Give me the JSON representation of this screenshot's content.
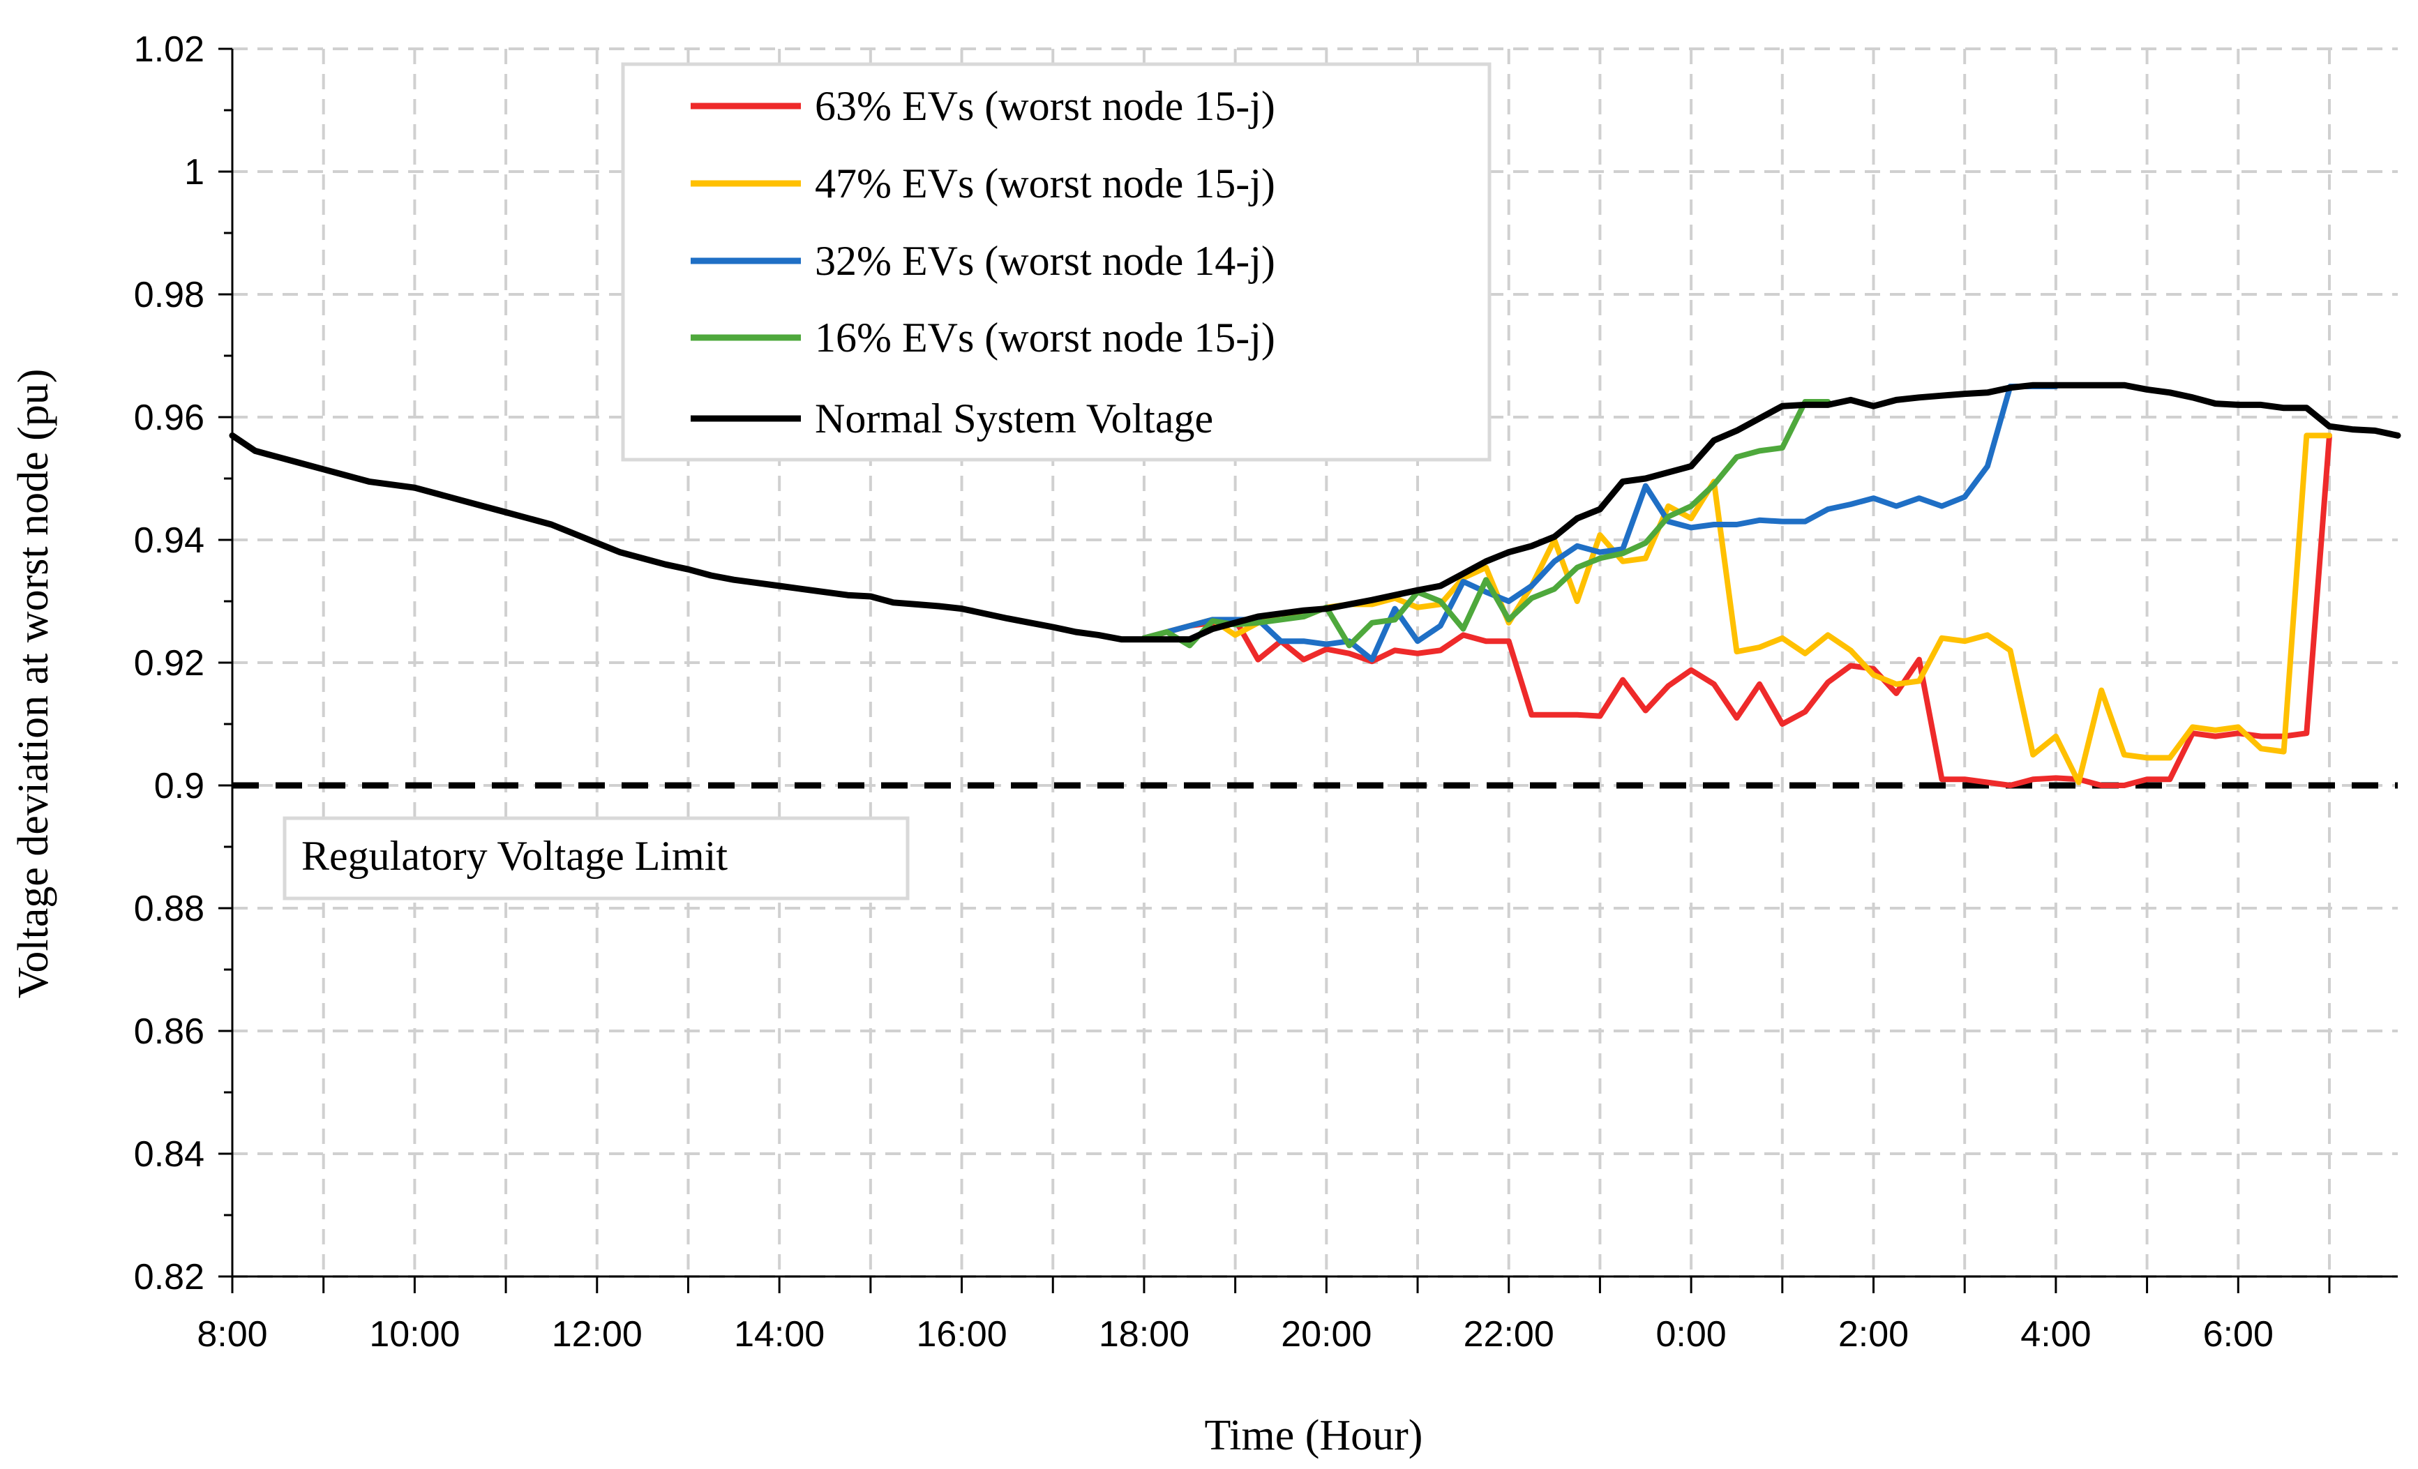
{
  "chart_data": {
    "type": "line",
    "title": "",
    "xlabel": "Time (Hour)",
    "ylabel": "Voltage deviation at worst node (pu)",
    "ylim": [
      0.82,
      1.02
    ],
    "y_ticks": [
      "1.02",
      "1",
      "0.98",
      "0.96",
      "0.94",
      "0.92",
      "0.9",
      "0.88",
      "0.86",
      "0.84",
      "0.82"
    ],
    "x_tick_labels": [
      "8:00",
      "10:00",
      "12:00",
      "14:00",
      "16:00",
      "18:00",
      "20:00",
      "22:00",
      "0:00",
      "2:00",
      "4:00",
      "6:00"
    ],
    "x_range_hours": [
      0,
      23.75
    ],
    "grid": true,
    "legend_position": "top-center",
    "reference_line": {
      "name": "Regulatory Voltage Limit",
      "value": 0.9,
      "style": "dashed",
      "color": "#000000"
    },
    "annotation": "Regulatory Voltage Limit",
    "series": [
      {
        "name": "63% EVs (worst node 15-j)",
        "color": "#ee2a2a",
        "x": [
          10,
          10.25,
          10.5,
          10.75,
          11,
          11.25,
          11.5,
          11.75,
          12,
          12.25,
          12.5,
          12.75,
          13,
          13.25,
          13.5,
          13.75,
          14,
          14.25,
          14.5,
          14.75,
          15,
          15.25,
          15.5,
          15.75,
          16,
          16.25,
          16.5,
          16.75,
          17,
          17.25,
          17.5,
          17.75,
          18,
          18.25,
          18.5,
          18.75,
          19,
          19.25,
          19.5,
          19.75,
          20,
          20.25,
          20.5,
          20.75,
          21,
          21.25,
          21.5,
          21.75,
          22,
          22.25,
          22.5,
          22.75,
          23
        ],
        "values": [
          0.9238,
          0.925,
          0.926,
          0.9265,
          0.927,
          0.9205,
          0.9235,
          0.9205,
          0.9222,
          0.9215,
          0.9202,
          0.922,
          0.9215,
          0.922,
          0.9245,
          0.9235,
          0.9235,
          0.9115,
          0.9115,
          0.9115,
          0.9113,
          0.9172,
          0.9122,
          0.9162,
          0.9188,
          0.9165,
          0.911,
          0.9165,
          0.91,
          0.912,
          0.9168,
          0.9195,
          0.919,
          0.915,
          0.9205,
          0.901,
          0.901,
          0.9005,
          0.9,
          0.901,
          0.9012,
          0.901,
          0.9,
          0.9,
          0.901,
          0.901,
          0.9085,
          0.908,
          0.9085,
          0.908,
          0.908,
          0.9085,
          0.957
        ]
      },
      {
        "name": "47% EVs (worst node 15-j)",
        "color": "#ffc000",
        "x": [
          10,
          10.25,
          10.5,
          10.75,
          11,
          11.25,
          11.5,
          11.75,
          12,
          12.25,
          12.5,
          12.75,
          13,
          13.25,
          13.5,
          13.75,
          14,
          14.25,
          14.5,
          14.75,
          15,
          15.25,
          15.5,
          15.75,
          16,
          16.25,
          16.5,
          16.75,
          17,
          17.25,
          17.5,
          17.75,
          18,
          18.25,
          18.5,
          18.75,
          19,
          19.25,
          19.5,
          19.75,
          20,
          20.25,
          20.5,
          20.75,
          21,
          21.25,
          21.5,
          21.75,
          22,
          22.25,
          22.5,
          22.75,
          23
        ],
        "values": [
          0.924,
          0.925,
          0.926,
          0.927,
          0.9245,
          0.9265,
          0.928,
          0.9275,
          0.929,
          0.9295,
          0.9295,
          0.9305,
          0.929,
          0.9295,
          0.9338,
          0.9355,
          0.9265,
          0.9325,
          0.94,
          0.93,
          0.9408,
          0.9365,
          0.937,
          0.9455,
          0.9435,
          0.9495,
          0.9218,
          0.9225,
          0.924,
          0.9215,
          0.9245,
          0.922,
          0.918,
          0.9165,
          0.917,
          0.924,
          0.9235,
          0.9245,
          0.922,
          0.905,
          0.908,
          0.9005,
          0.9155,
          0.905,
          0.9045,
          0.9045,
          0.9095,
          0.909,
          0.9095,
          0.906,
          0.9055,
          0.957,
          0.957
        ]
      },
      {
        "name": "32% EVs (worst node 14-j)",
        "color": "#1f6fc5",
        "x": [
          10,
          10.25,
          10.5,
          10.75,
          11,
          11.25,
          11.5,
          11.75,
          12,
          12.25,
          12.5,
          12.75,
          13,
          13.25,
          13.5,
          13.75,
          14,
          14.25,
          14.5,
          14.75,
          15,
          15.25,
          15.5,
          15.75,
          16,
          16.25,
          16.5,
          16.75,
          17,
          17.25,
          17.5,
          17.75,
          18,
          18.25,
          18.5,
          18.75,
          19,
          19.25,
          19.5,
          19.75,
          20
        ],
        "values": [
          0.924,
          0.925,
          0.926,
          0.927,
          0.927,
          0.927,
          0.9235,
          0.9235,
          0.923,
          0.9235,
          0.9205,
          0.9288,
          0.9235,
          0.926,
          0.9332,
          0.9315,
          0.93,
          0.9325,
          0.9365,
          0.939,
          0.938,
          0.9385,
          0.9488,
          0.943,
          0.942,
          0.9425,
          0.9425,
          0.9432,
          0.943,
          0.943,
          0.945,
          0.9458,
          0.9468,
          0.9455,
          0.9468,
          0.9455,
          0.947,
          0.952,
          0.965,
          0.965,
          0.965
        ]
      },
      {
        "name": "16% EVs (worst node 15-j)",
        "color": "#4ea83c",
        "x": [
          10,
          10.25,
          10.5,
          10.75,
          11,
          11.25,
          11.5,
          11.75,
          12,
          12.25,
          12.5,
          12.75,
          13,
          13.25,
          13.5,
          13.75,
          14,
          14.25,
          14.5,
          14.75,
          15,
          15.25,
          15.5,
          15.75,
          16,
          16.25,
          16.5,
          16.75,
          17,
          17.25,
          17.5
        ],
        "values": [
          0.924,
          0.925,
          0.9228,
          0.9268,
          0.9262,
          0.9265,
          0.927,
          0.9275,
          0.929,
          0.9228,
          0.9265,
          0.927,
          0.9315,
          0.93,
          0.9255,
          0.9335,
          0.927,
          0.9305,
          0.932,
          0.9355,
          0.937,
          0.9378,
          0.9395,
          0.9438,
          0.9455,
          0.949,
          0.9535,
          0.9545,
          0.955,
          0.9625,
          0.9625
        ]
      },
      {
        "name": "Normal System Voltage",
        "color": "#000000",
        "x": [
          0,
          0.25,
          0.5,
          0.75,
          1,
          1.25,
          1.5,
          1.75,
          2,
          2.25,
          2.5,
          2.75,
          3,
          3.25,
          3.5,
          3.75,
          4,
          4.25,
          4.5,
          4.75,
          5,
          5.25,
          5.5,
          5.75,
          6,
          6.25,
          6.5,
          6.75,
          7,
          7.25,
          7.5,
          7.75,
          8,
          8.25,
          8.5,
          8.75,
          9,
          9.25,
          9.5,
          9.75,
          10,
          10.25,
          10.5,
          10.75,
          11,
          11.25,
          11.5,
          11.75,
          12,
          12.25,
          12.5,
          12.75,
          13,
          13.25,
          13.5,
          13.75,
          14,
          14.25,
          14.5,
          14.75,
          15,
          15.25,
          15.5,
          15.75,
          16,
          16.25,
          16.5,
          16.75,
          17,
          17.25,
          17.5,
          17.75,
          18,
          18.25,
          18.5,
          18.75,
          19,
          19.25,
          19.5,
          19.75,
          20,
          20.25,
          20.5,
          20.75,
          21,
          21.25,
          21.5,
          21.75,
          22,
          22.25,
          22.5,
          22.75,
          23,
          23.25,
          23.5,
          23.75
        ],
        "values": [
          0.957,
          0.9545,
          0.9535,
          0.9525,
          0.9515,
          0.9505,
          0.9495,
          0.949,
          0.9485,
          0.9475,
          0.9465,
          0.9455,
          0.9445,
          0.9435,
          0.9425,
          0.941,
          0.9395,
          0.938,
          0.937,
          0.936,
          0.9352,
          0.9342,
          0.9335,
          0.933,
          0.9325,
          0.932,
          0.9315,
          0.931,
          0.9308,
          0.9298,
          0.9295,
          0.9292,
          0.9288,
          0.928,
          0.9272,
          0.9265,
          0.9258,
          0.925,
          0.9245,
          0.9238,
          0.9238,
          0.9238,
          0.9238,
          0.9255,
          0.9265,
          0.9275,
          0.928,
          0.9285,
          0.9288,
          0.9295,
          0.9302,
          0.931,
          0.9318,
          0.9325,
          0.9345,
          0.9365,
          0.938,
          0.939,
          0.9405,
          0.9435,
          0.945,
          0.9495,
          0.95,
          0.951,
          0.952,
          0.9562,
          0.9578,
          0.9598,
          0.9618,
          0.962,
          0.962,
          0.9628,
          0.9618,
          0.9628,
          0.9632,
          0.9635,
          0.9638,
          0.964,
          0.9648,
          0.9652,
          0.9652,
          0.9652,
          0.9652,
          0.9652,
          0.9645,
          0.964,
          0.9632,
          0.9622,
          0.962,
          0.962,
          0.9615,
          0.9615,
          0.9585,
          0.958,
          0.9578,
          0.957
        ]
      }
    ]
  }
}
